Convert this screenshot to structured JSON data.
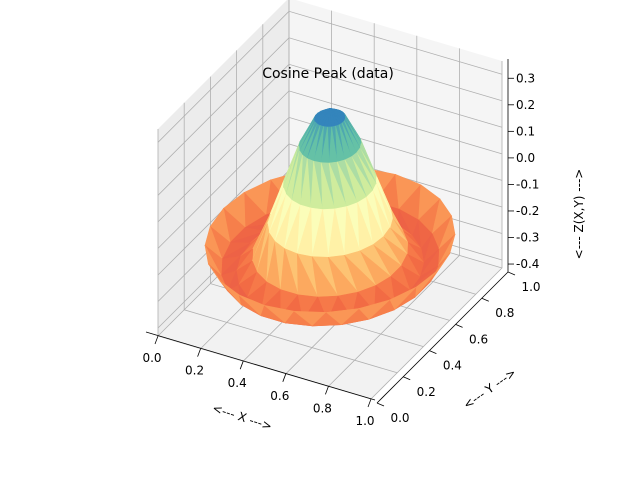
{
  "chart_data": {
    "type": "surface-3d-trisurf",
    "title": "Cosine Peak (data)",
    "xlabel": "<--- X --->",
    "ylabel": "<--- Y --->",
    "zlabel": "<--- Z(X,Y) --->",
    "x_ticks": [
      "0.0",
      "0.2",
      "0.4",
      "0.6",
      "0.8",
      "1.0"
    ],
    "y_ticks": [
      "0.0",
      "0.2",
      "0.4",
      "0.6",
      "0.8",
      "1.0"
    ],
    "z_ticks": [
      "-0.4",
      "-0.3",
      "-0.2",
      "-0.1",
      "0.0",
      "0.1",
      "0.2",
      "0.3"
    ],
    "xlim": [
      0,
      1
    ],
    "ylim": [
      0,
      1
    ],
    "zlim": [
      -0.43,
      0.35
    ],
    "colormap": "Spectral",
    "grid": true,
    "surface_function": "z = 0.3*cos(8*r) with r = distance from (0.5, 0.5)"
  }
}
